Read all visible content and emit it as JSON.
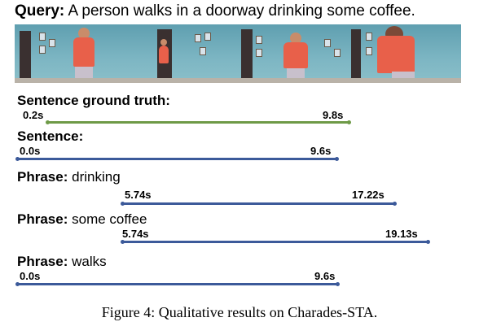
{
  "query": {
    "label": "Query:",
    "text": "A person walks in a doorway drinking some coffee."
  },
  "frames": [
    {
      "name": "frame-1"
    },
    {
      "name": "frame-2"
    },
    {
      "name": "frame-3"
    },
    {
      "name": "frame-4"
    }
  ],
  "rows": [
    {
      "label": "Sentence ground truth:",
      "text": "",
      "color": "#6e9a47",
      "start": "0.2s",
      "end": "9.8s"
    },
    {
      "label": "Sentence:",
      "text": "",
      "color": "#3c5a9a",
      "start": "0.0s",
      "end": "9.6s"
    },
    {
      "label": "Phrase:",
      "text": "drinking",
      "color": "#3c5a9a",
      "start": "5.74s",
      "end": "17.22s"
    },
    {
      "label": "Phrase:",
      "text": "some coffee",
      "color": "#3c5a9a",
      "start": "5.74s",
      "end": "19.13s"
    },
    {
      "label": "Phrase:",
      "text": "walks",
      "color": "#3c5a9a",
      "start": "0.0s",
      "end": "9.6s"
    }
  ],
  "caption": "Figure 4: Qualitative results on Charades-STA."
}
